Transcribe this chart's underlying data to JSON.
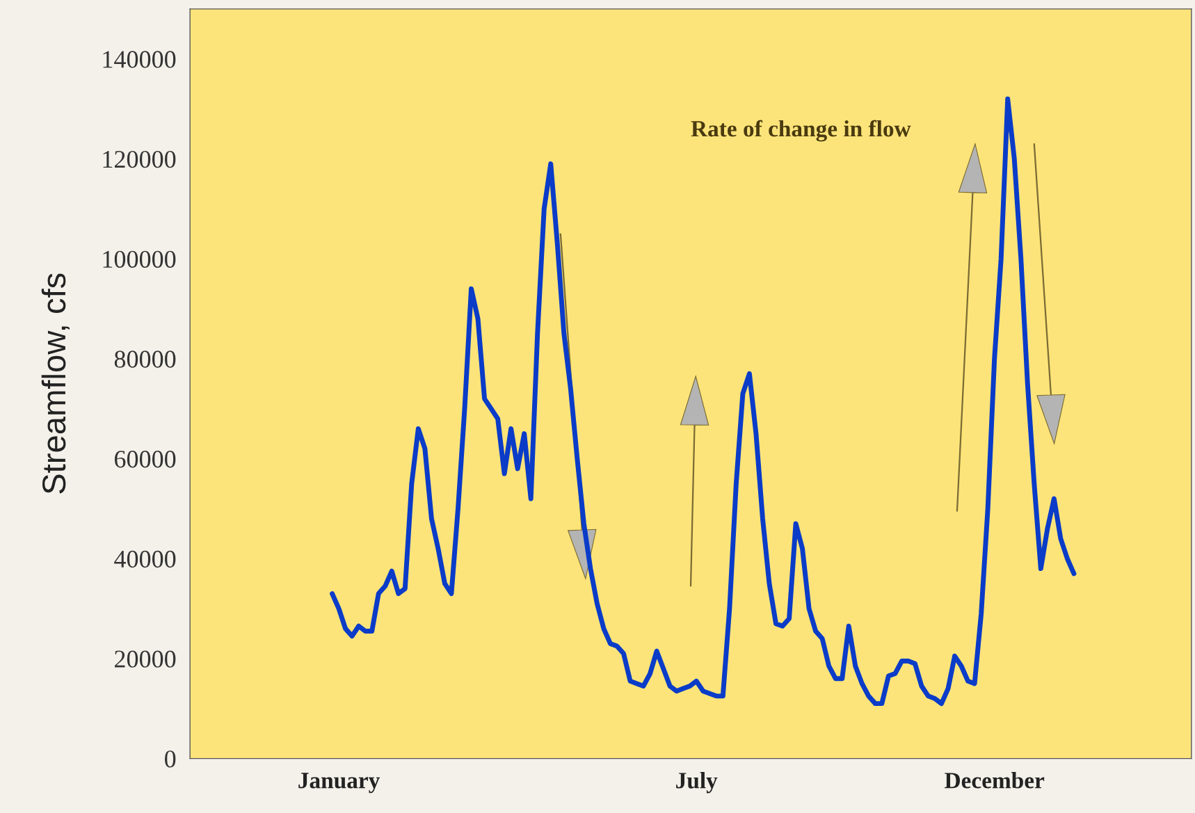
{
  "chart_data": {
    "type": "line",
    "ylabel": "Streamflow, cfs",
    "annotations": [
      "Rate of change in flow"
    ],
    "categories": [
      null,
      "January",
      null,
      null,
      null,
      null,
      null,
      null,
      null,
      null,
      null,
      null,
      null,
      null,
      null,
      null,
      null,
      null,
      null,
      null,
      null,
      null,
      null,
      null,
      null,
      null,
      null,
      null,
      null,
      null,
      null,
      null,
      null,
      null,
      null,
      null,
      null,
      null,
      null,
      null,
      null,
      null,
      null,
      null,
      null,
      null,
      null,
      null,
      null,
      null,
      null,
      null,
      null,
      null,
      null,
      "July",
      null,
      null,
      null,
      null,
      null,
      null,
      null,
      null,
      null,
      null,
      null,
      null,
      null,
      null,
      null,
      null,
      null,
      null,
      null,
      null,
      null,
      null,
      null,
      null,
      null,
      null,
      null,
      null,
      null,
      null,
      null,
      null,
      null,
      null,
      null,
      null,
      null,
      null,
      null,
      null,
      null,
      null,
      null,
      null,
      "December",
      null,
      null,
      null,
      null,
      null,
      null,
      null,
      null,
      null,
      null,
      null,
      null
    ],
    "series": [
      {
        "color": "#0a3cc8",
        "values": [
          33000,
          30000,
          26000,
          24500,
          26500,
          25500,
          25500,
          33000,
          34500,
          37500,
          33000,
          34000,
          55000,
          66000,
          62000,
          48000,
          42000,
          35000,
          33000,
          50000,
          70000,
          94000,
          88000,
          72000,
          70000,
          68000,
          57000,
          66000,
          58000,
          65000,
          52000,
          85000,
          110000,
          119000,
          103000,
          85000,
          74000,
          60000,
          47000,
          38000,
          31000,
          26000,
          23000,
          22500,
          21000,
          15500,
          15000,
          14500,
          17000,
          21500,
          18000,
          14500,
          13500,
          14000,
          14500,
          15500,
          13500,
          13000,
          12500,
          12500,
          30000,
          55000,
          73000,
          77000,
          65000,
          48000,
          35000,
          27000,
          26500,
          28000,
          47000,
          42000,
          30000,
          25500,
          24000,
          18500,
          16000,
          16000,
          26500,
          18500,
          15000,
          12500,
          11000,
          11000,
          16500,
          17000,
          19500,
          19500,
          19000,
          14500,
          12500,
          12000,
          11000,
          14000,
          20500,
          18500,
          15500,
          15000,
          29000,
          50000,
          80000,
          100000,
          132000,
          120000,
          100000,
          75000,
          55000,
          38000,
          46000,
          52000,
          44000,
          40000,
          37000
        ]
      }
    ],
    "ylim": [
      0,
      150000
    ],
    "yticks": [
      0,
      20000,
      40000,
      60000,
      80000,
      100000,
      120000,
      140000
    ],
    "grid": false,
    "legend": false,
    "marker": "none",
    "line_style": "solid"
  }
}
